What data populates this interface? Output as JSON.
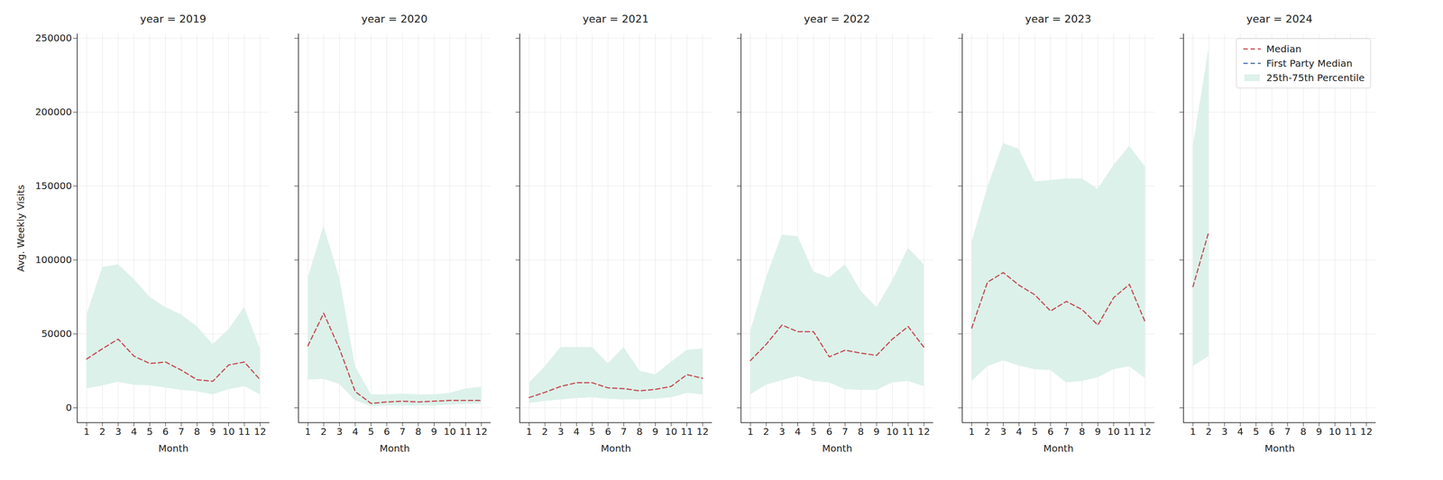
{
  "chart_data": [
    {
      "type": "line",
      "title": "year = 2019",
      "x_label": "Month",
      "y_label": "Avg. Weekly Visits",
      "x": [
        1,
        2,
        3,
        4,
        5,
        6,
        7,
        8,
        9,
        10,
        11,
        12
      ],
      "xlim": [
        0.4,
        12.6
      ],
      "xticks": [
        1,
        2,
        3,
        4,
        5,
        6,
        7,
        8,
        9,
        10,
        11,
        12
      ],
      "ylim": [
        -10000,
        253000
      ],
      "yticks": [
        0,
        50000,
        100000,
        150000,
        200000,
        250000
      ],
      "grid": true,
      "series": [
        {
          "name": "Median",
          "type": "line",
          "color": "#c44e52",
          "line_style": "dashed",
          "values": [
            33000,
            40000,
            46500,
            35000,
            30000,
            31000,
            25500,
            19000,
            18000,
            29000,
            31000,
            19000
          ]
        },
        {
          "name": "First Party Median",
          "type": "line",
          "color": "#4c72b0",
          "line_style": "dashed",
          "values": [
            null,
            null,
            null,
            null,
            null,
            null,
            null,
            null,
            null,
            null,
            null,
            null
          ]
        },
        {
          "name": "25th-75th Percentile",
          "type": "area",
          "color": "#dcf1ea",
          "values": [
            [
              13000,
              63000
            ],
            [
              15000,
              95000
            ],
            [
              17500,
              97000
            ],
            [
              15500,
              87000
            ],
            [
              15000,
              75000
            ],
            [
              13500,
              68000
            ],
            [
              12000,
              63000
            ],
            [
              11000,
              55000
            ],
            [
              9000,
              43000
            ],
            [
              12500,
              53000
            ],
            [
              14500,
              68000
            ],
            [
              9000,
              40000
            ]
          ]
        }
      ]
    },
    {
      "type": "line",
      "title": "year = 2020",
      "x_label": "Month",
      "x": [
        1,
        2,
        3,
        4,
        5,
        6,
        7,
        8,
        9,
        10,
        11,
        12
      ],
      "xlim": [
        0.4,
        12.6
      ],
      "xticks": [
        1,
        2,
        3,
        4,
        5,
        6,
        7,
        8,
        9,
        10,
        11,
        12
      ],
      "ylim": [
        -10000,
        253000
      ],
      "yticks": [
        0,
        50000,
        100000,
        150000,
        200000,
        250000
      ],
      "grid": true,
      "tick_labels": "x",
      "series": [
        {
          "name": "Median",
          "type": "line",
          "color": "#c44e52",
          "line_style": "dashed",
          "values": [
            42000,
            64000,
            40000,
            11000,
            3000,
            4000,
            4500,
            4000,
            4500,
            5000,
            5000,
            5000
          ]
        },
        {
          "name": "First Party Median",
          "type": "line",
          "color": "#4c72b0",
          "line_style": "dashed",
          "values": [
            null,
            null,
            null,
            null,
            null,
            null,
            null,
            null,
            null,
            null,
            null,
            null
          ]
        },
        {
          "name": "25th-75th Percentile",
          "type": "area",
          "color": "#dcf1ea",
          "values": [
            [
              19000,
              88000
            ],
            [
              19500,
              123000
            ],
            [
              16000,
              88000
            ],
            [
              5000,
              28000
            ],
            [
              1000,
              9000
            ],
            [
              1500,
              9000
            ],
            [
              1500,
              9500
            ],
            [
              1500,
              9000
            ],
            [
              1500,
              9000
            ],
            [
              2000,
              10000
            ],
            [
              2500,
              13000
            ],
            [
              2500,
              14000
            ]
          ]
        }
      ]
    },
    {
      "type": "line",
      "title": "year = 2021",
      "x_label": "Month",
      "x": [
        1,
        2,
        3,
        4,
        5,
        6,
        7,
        8,
        9,
        10,
        11,
        12
      ],
      "xlim": [
        0.4,
        12.6
      ],
      "xticks": [
        1,
        2,
        3,
        4,
        5,
        6,
        7,
        8,
        9,
        10,
        11,
        12
      ],
      "ylim": [
        -10000,
        253000
      ],
      "yticks": [
        0,
        50000,
        100000,
        150000,
        200000,
        250000
      ],
      "grid": true,
      "tick_labels": "x",
      "series": [
        {
          "name": "Median",
          "type": "line",
          "color": "#c44e52",
          "line_style": "dashed",
          "values": [
            7000,
            10500,
            14500,
            17000,
            17000,
            13500,
            13000,
            11500,
            12500,
            14500,
            22500,
            20000
          ]
        },
        {
          "name": "First Party Median",
          "type": "line",
          "color": "#4c72b0",
          "line_style": "dashed",
          "values": [
            null,
            null,
            null,
            null,
            null,
            null,
            null,
            null,
            null,
            null,
            null,
            null
          ]
        },
        {
          "name": "25th-75th Percentile",
          "type": "area",
          "color": "#dcf1ea",
          "values": [
            [
              3000,
              17000
            ],
            [
              4500,
              28000
            ],
            [
              5500,
              41000
            ],
            [
              6500,
              41000
            ],
            [
              7000,
              41000
            ],
            [
              6000,
              30000
            ],
            [
              5500,
              41000
            ],
            [
              5500,
              25000
            ],
            [
              6000,
              22500
            ],
            [
              7000,
              31000
            ],
            [
              10000,
              39000
            ],
            [
              9000,
              40000
            ]
          ]
        }
      ]
    },
    {
      "type": "line",
      "title": "year = 2022",
      "x_label": "Month",
      "x": [
        1,
        2,
        3,
        4,
        5,
        6,
        7,
        8,
        9,
        10,
        11,
        12
      ],
      "xlim": [
        0.4,
        12.6
      ],
      "xticks": [
        1,
        2,
        3,
        4,
        5,
        6,
        7,
        8,
        9,
        10,
        11,
        12
      ],
      "ylim": [
        -10000,
        253000
      ],
      "yticks": [
        0,
        50000,
        100000,
        150000,
        200000,
        250000
      ],
      "grid": true,
      "tick_labels": "x",
      "series": [
        {
          "name": "Median",
          "type": "line",
          "color": "#c44e52",
          "line_style": "dashed",
          "values": [
            32000,
            43000,
            56000,
            51500,
            51500,
            34500,
            39000,
            37000,
            35500,
            46500,
            55000,
            41000
          ]
        },
        {
          "name": "First Party Median",
          "type": "line",
          "color": "#4c72b0",
          "line_style": "dashed",
          "values": [
            null,
            null,
            null,
            null,
            null,
            null,
            null,
            null,
            null,
            null,
            null,
            null
          ]
        },
        {
          "name": "25th-75th Percentile",
          "type": "area",
          "color": "#dcf1ea",
          "values": [
            [
              9000,
              52000
            ],
            [
              15500,
              88000
            ],
            [
              18500,
              117000
            ],
            [
              21500,
              116000
            ],
            [
              18000,
              92000
            ],
            [
              17000,
              88000
            ],
            [
              12500,
              97000
            ],
            [
              12000,
              79000
            ],
            [
              12000,
              68000
            ],
            [
              17000,
              86000
            ],
            [
              18000,
              108000
            ],
            [
              14500,
              97000
            ]
          ]
        }
      ]
    },
    {
      "type": "line",
      "title": "year = 2023",
      "x_label": "Month",
      "x": [
        1,
        2,
        3,
        4,
        5,
        6,
        7,
        8,
        9,
        10,
        11,
        12
      ],
      "xlim": [
        0.4,
        12.6
      ],
      "xticks": [
        1,
        2,
        3,
        4,
        5,
        6,
        7,
        8,
        9,
        10,
        11,
        12
      ],
      "ylim": [
        -10000,
        253000
      ],
      "yticks": [
        0,
        50000,
        100000,
        150000,
        200000,
        250000
      ],
      "grid": true,
      "tick_labels": "x",
      "series": [
        {
          "name": "Median",
          "type": "line",
          "color": "#c44e52",
          "line_style": "dashed",
          "values": [
            54000,
            85000,
            91500,
            83000,
            76500,
            65500,
            72000,
            66500,
            56000,
            74500,
            83500,
            58000
          ]
        },
        {
          "name": "First Party Median",
          "type": "line",
          "color": "#4c72b0",
          "line_style": "dashed",
          "values": [
            null,
            null,
            null,
            null,
            null,
            null,
            null,
            null,
            null,
            null,
            null,
            null
          ]
        },
        {
          "name": "25th-75th Percentile",
          "type": "area",
          "color": "#dcf1ea",
          "values": [
            [
              18000,
              112000
            ],
            [
              28000,
              149000
            ],
            [
              32000,
              179000
            ],
            [
              28500,
              175000
            ],
            [
              26000,
              153000
            ],
            [
              25500,
              154000
            ],
            [
              17000,
              155000
            ],
            [
              18000,
              155000
            ],
            [
              20500,
              148000
            ],
            [
              26000,
              164000
            ],
            [
              28000,
              177000
            ],
            [
              20000,
              163000
            ]
          ]
        }
      ]
    },
    {
      "type": "line",
      "title": "year = 2024",
      "x_label": "Month",
      "x": [
        1,
        2,
        3,
        4,
        5,
        6,
        7,
        8,
        9,
        10,
        11,
        12
      ],
      "xlim": [
        0.4,
        12.6
      ],
      "xticks": [
        1,
        2,
        3,
        4,
        5,
        6,
        7,
        8,
        9,
        10,
        11,
        12
      ],
      "ylim": [
        -10000,
        253000
      ],
      "yticks": [
        0,
        50000,
        100000,
        150000,
        200000,
        250000
      ],
      "grid": true,
      "tick_labels": "x",
      "legend": "upper right",
      "series": [
        {
          "name": "Median",
          "type": "line",
          "color": "#c44e52",
          "line_style": "dashed",
          "values": [
            82000,
            119000,
            null,
            null,
            null,
            null,
            null,
            null,
            null,
            null,
            null,
            null
          ]
        },
        {
          "name": "First Party Median",
          "type": "line",
          "color": "#4c72b0",
          "line_style": "dashed",
          "values": [
            null,
            null,
            null,
            null,
            null,
            null,
            null,
            null,
            null,
            null,
            null,
            null
          ]
        },
        {
          "name": "25th-75th Percentile",
          "type": "area",
          "color": "#dcf1ea",
          "values": [
            [
              28000,
              177000
            ],
            [
              35000,
              243000
            ],
            null,
            null,
            null,
            null,
            null,
            null,
            null,
            null,
            null,
            null
          ]
        }
      ]
    }
  ]
}
